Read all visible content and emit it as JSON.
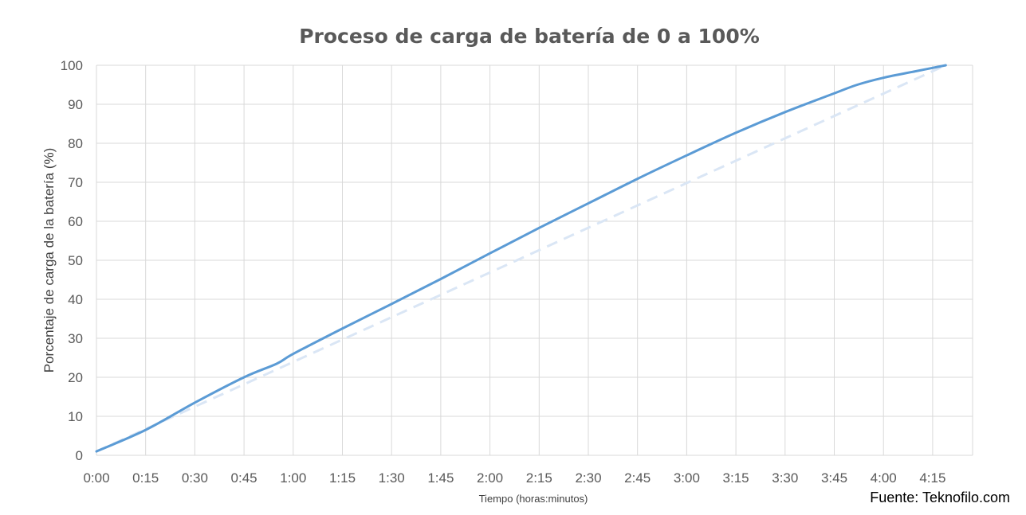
{
  "chart_data": {
    "type": "line",
    "title": "Proceso de carga de batería de 0 a 100%",
    "xlabel": "Tiempo (horas:minutos)",
    "ylabel": "Porcentaje de carga de la batería (%)",
    "x_ticks": [
      "0:00",
      "0:15",
      "0:30",
      "0:45",
      "1:00",
      "1:15",
      "1:30",
      "1:45",
      "2:00",
      "2:15",
      "2:30",
      "2:45",
      "3:00",
      "3:15",
      "3:30",
      "3:45",
      "4:00",
      "4:15"
    ],
    "y_ticks": [
      "0",
      "10",
      "20",
      "30",
      "40",
      "50",
      "60",
      "70",
      "80",
      "90",
      "100"
    ],
    "xlim_minutes": [
      0,
      266
    ],
    "ylim": [
      0,
      100
    ],
    "grid": true,
    "legend": "none",
    "series": [
      {
        "style": "solid",
        "color": "#5b9bd5",
        "x_minutes": [
          0,
          15,
          30,
          45,
          55,
          60,
          75,
          90,
          105,
          120,
          135,
          150,
          165,
          180,
          195,
          210,
          225,
          232,
          240,
          250,
          259
        ],
        "values": [
          1,
          6.5,
          13.5,
          20,
          23.5,
          26,
          32.5,
          38.8,
          45.2,
          51.8,
          58.3,
          64.6,
          70.9,
          76.9,
          82.7,
          88,
          92.8,
          95,
          96.8,
          98.5,
          100
        ]
      },
      {
        "style": "dashed",
        "color": "#dae6f5",
        "x_minutes": [
          0,
          259
        ],
        "values": [
          1,
          100
        ]
      }
    ]
  },
  "source": "Fuente: Teknofilo.com"
}
